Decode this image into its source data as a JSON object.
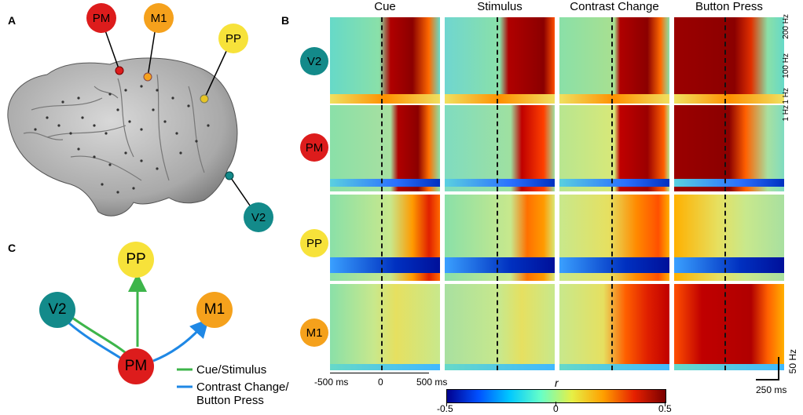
{
  "panels": {
    "a": "A",
    "b": "B",
    "c": "C"
  },
  "regions": {
    "pm": {
      "label": "PM",
      "color": "#dd1c1c"
    },
    "m1": {
      "label": "M1",
      "color": "#f5a11c"
    },
    "pp": {
      "label": "PP",
      "color": "#f7e23a"
    },
    "v2": {
      "label": "V2",
      "color": "#138a8a"
    }
  },
  "columns": [
    "Cue",
    "Stimulus",
    "Contrast Change",
    "Button Press"
  ],
  "rows": [
    "V2",
    "PM",
    "PP",
    "M1"
  ],
  "freq_axis": {
    "top": "200 Hz",
    "mid": "100 Hz",
    "bottom": "1 Hz"
  },
  "time_axis": {
    "left": "-500 ms",
    "zero": "0",
    "right": "500 ms"
  },
  "scale_bar": {
    "freq": "50 Hz",
    "time": "250 ms"
  },
  "colorbar": {
    "label": "r",
    "min": "-0.5",
    "mid": "0",
    "max": "0.5"
  },
  "legend": {
    "green": {
      "label": "Cue/Stimulus",
      "color": "#3db54a"
    },
    "blue": {
      "label_line1": "Contrast Change/",
      "label_line2": "Button Press",
      "color": "#1f88e5"
    }
  }
}
